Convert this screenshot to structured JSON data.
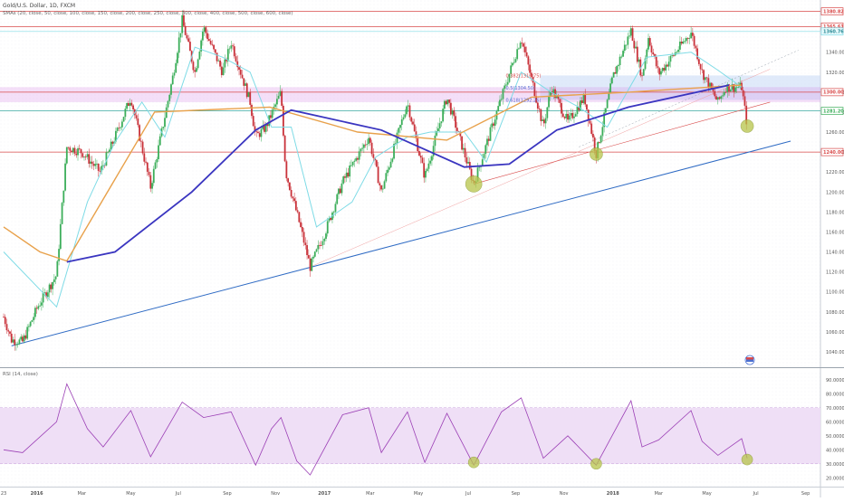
{
  "header": {
    "symbol": "Gold/U.S. Dollar, 1D, FXCM",
    "indicator": "SMAs (20, close, 50, close, 100, close, 150, close, 200, close, 250, close, 300, close, 400, close, 500, close, 600, close)",
    "rsi_label": "RSI (14, close)"
  },
  "colors": {
    "up": "#3cae5a",
    "down": "#c9323a",
    "sma20": "#7fdbe6",
    "sma100": "#e8a14b",
    "sma200": "#3a35c0",
    "hline": "#d94a4a",
    "trend": "#2f6bc4",
    "rsi": "#9b3fb5",
    "rsi_band": "#eddcf5",
    "marker": "#b8c54a",
    "fib_box": "#c7d8f5",
    "zone": "#d78be6"
  },
  "price_axis": {
    "ticks": [
      "1340.00",
      "1320.00",
      "1300.00",
      "1280.00",
      "1260.00",
      "1240.00",
      "1220.00",
      "1200.00",
      "1180.00",
      "1160.00",
      "1140.00",
      "1120.00",
      "1100.00",
      "1080.00",
      "1060.00",
      "1040.00"
    ],
    "tags": [
      {
        "label": "1380.82",
        "value": 1380.82,
        "color": "#d94a4a"
      },
      {
        "label": "1365.61",
        "value": 1365.61,
        "color": "#d94a4a"
      },
      {
        "label": "1360.76",
        "value": 1360.76,
        "color": "#7fdbe6"
      },
      {
        "label": "1300.00",
        "value": 1300.0,
        "color": "#d94a4a"
      },
      {
        "label": "1281.20",
        "value": 1281.2,
        "color": "#3cae5a"
      },
      {
        "label": "1240.00",
        "value": 1240.0,
        "color": "#d94a4a"
      }
    ]
  },
  "rsi_axis": {
    "ticks": [
      "90.0000",
      "80.0000",
      "70.0000",
      "60.0000",
      "50.0000",
      "40.0000",
      "30.0000",
      "20.0000"
    ]
  },
  "time_axis": {
    "labels": [
      "23",
      "2016",
      "Mar",
      "May",
      "Jul",
      "Sep",
      "Nov",
      "2017",
      "Mar",
      "May",
      "Jul",
      "Sep",
      "Nov",
      "2018",
      "Mar",
      "May",
      "Jul",
      "Sep"
    ]
  },
  "annotations": {
    "fib_382": "0.382(1316.75)",
    "fib_5": "0.5(1304.50)",
    "fib_618": "0.618(1292.26)"
  },
  "chart_data": {
    "type": "candlestick",
    "ylim": [
      1030,
      1385
    ],
    "rsi_ylim": [
      15,
      95
    ],
    "horizontal_levels": [
      1380.82,
      1365.61,
      1300.0,
      1281.2,
      1240.0
    ],
    "close_path": [
      {
        "x": "2015-11-23",
        "y": 1075
      },
      {
        "x": "2015-12-03",
        "y": 1052
      },
      {
        "x": "2015-12-17",
        "y": 1050
      },
      {
        "x": "2016-01-05",
        "y": 1085
      },
      {
        "x": "2016-01-29",
        "y": 1117
      },
      {
        "x": "2016-02-11",
        "y": 1245
      },
      {
        "x": "2016-03-01",
        "y": 1240
      },
      {
        "x": "2016-03-24",
        "y": 1220
      },
      {
        "x": "2016-04-12",
        "y": 1255
      },
      {
        "x": "2016-05-02",
        "y": 1295
      },
      {
        "x": "2016-05-27",
        "y": 1205
      },
      {
        "x": "2016-06-24",
        "y": 1315
      },
      {
        "x": "2016-07-06",
        "y": 1372
      },
      {
        "x": "2016-07-22",
        "y": 1320
      },
      {
        "x": "2016-08-02",
        "y": 1365
      },
      {
        "x": "2016-08-26",
        "y": 1320
      },
      {
        "x": "2016-09-06",
        "y": 1350
      },
      {
        "x": "2016-09-30",
        "y": 1290
      },
      {
        "x": "2016-10-07",
        "y": 1255
      },
      {
        "x": "2016-10-20",
        "y": 1265
      },
      {
        "x": "2016-11-08",
        "y": 1300
      },
      {
        "x": "2016-11-14",
        "y": 1220
      },
      {
        "x": "2016-12-01",
        "y": 1170
      },
      {
        "x": "2016-12-15",
        "y": 1125
      },
      {
        "x": "2017-01-03",
        "y": 1160
      },
      {
        "x": "2017-01-25",
        "y": 1210
      },
      {
        "x": "2017-02-27",
        "y": 1255
      },
      {
        "x": "2017-03-15",
        "y": 1200
      },
      {
        "x": "2017-04-17",
        "y": 1290
      },
      {
        "x": "2017-05-09",
        "y": 1215
      },
      {
        "x": "2017-06-06",
        "y": 1295
      },
      {
        "x": "2017-07-10",
        "y": 1208
      },
      {
        "x": "2017-08-04",
        "y": 1270
      },
      {
        "x": "2017-09-08",
        "y": 1355
      },
      {
        "x": "2017-10-06",
        "y": 1265
      },
      {
        "x": "2017-10-16",
        "y": 1305
      },
      {
        "x": "2017-11-06",
        "y": 1270
      },
      {
        "x": "2017-11-27",
        "y": 1295
      },
      {
        "x": "2017-12-12",
        "y": 1238
      },
      {
        "x": "2018-01-02",
        "y": 1315
      },
      {
        "x": "2018-01-25",
        "y": 1362
      },
      {
        "x": "2018-02-08",
        "y": 1315
      },
      {
        "x": "2018-02-16",
        "y": 1355
      },
      {
        "x": "2018-03-01",
        "y": 1318
      },
      {
        "x": "2018-04-11",
        "y": 1360
      },
      {
        "x": "2018-04-25",
        "y": 1320
      },
      {
        "x": "2018-05-15",
        "y": 1290
      },
      {
        "x": "2018-05-25",
        "y": 1305
      },
      {
        "x": "2018-06-14",
        "y": 1305
      },
      {
        "x": "2018-06-21",
        "y": 1266
      }
    ],
    "series": [
      {
        "name": "SMA 20",
        "points": [
          {
            "x": "2015-11-23",
            "y": 1140
          },
          {
            "x": "2016-01-29",
            "y": 1085
          },
          {
            "x": "2016-03-08",
            "y": 1190
          },
          {
            "x": "2016-04-12",
            "y": 1250
          },
          {
            "x": "2016-05-16",
            "y": 1290
          },
          {
            "x": "2016-06-14",
            "y": 1255
          },
          {
            "x": "2016-07-22",
            "y": 1345
          },
          {
            "x": "2016-08-26",
            "y": 1335
          },
          {
            "x": "2016-09-30",
            "y": 1320
          },
          {
            "x": "2016-10-27",
            "y": 1265
          },
          {
            "x": "2016-11-21",
            "y": 1265
          },
          {
            "x": "2016-12-23",
            "y": 1165
          },
          {
            "x": "2017-02-06",
            "y": 1190
          },
          {
            "x": "2017-03-08",
            "y": 1235
          },
          {
            "x": "2017-04-17",
            "y": 1255
          },
          {
            "x": "2017-05-16",
            "y": 1260
          },
          {
            "x": "2017-06-28",
            "y": 1260
          },
          {
            "x": "2017-07-26",
            "y": 1230
          },
          {
            "x": "2017-09-08",
            "y": 1320
          },
          {
            "x": "2017-10-16",
            "y": 1300
          },
          {
            "x": "2017-11-20",
            "y": 1285
          },
          {
            "x": "2017-12-26",
            "y": 1265
          },
          {
            "x": "2018-02-14",
            "y": 1335
          },
          {
            "x": "2018-04-11",
            "y": 1340
          },
          {
            "x": "2018-05-15",
            "y": 1322
          },
          {
            "x": "2018-06-14",
            "y": 1305
          }
        ]
      },
      {
        "name": "SMA 100",
        "points": [
          {
            "x": "2015-11-23",
            "y": 1165
          },
          {
            "x": "2016-01-08",
            "y": 1140
          },
          {
            "x": "2016-02-11",
            "y": 1131
          },
          {
            "x": "2016-06-01",
            "y": 1280
          },
          {
            "x": "2016-10-25",
            "y": 1285
          },
          {
            "x": "2017-02-13",
            "y": 1260
          },
          {
            "x": "2017-06-06",
            "y": 1252
          },
          {
            "x": "2017-09-21",
            "y": 1295
          },
          {
            "x": "2018-01-22",
            "y": 1300
          },
          {
            "x": "2018-06-14",
            "y": 1307
          }
        ]
      },
      {
        "name": "SMA 200",
        "points": [
          {
            "x": "2016-02-11",
            "y": 1130
          },
          {
            "x": "2016-04-12",
            "y": 1140
          },
          {
            "x": "2016-07-18",
            "y": 1200
          },
          {
            "x": "2016-10-07",
            "y": 1262
          },
          {
            "x": "2016-11-21",
            "y": 1282
          },
          {
            "x": "2017-03-15",
            "y": 1262
          },
          {
            "x": "2017-06-28",
            "y": 1225
          },
          {
            "x": "2017-08-24",
            "y": 1228
          },
          {
            "x": "2017-10-23",
            "y": 1262
          },
          {
            "x": "2018-01-22",
            "y": 1285
          },
          {
            "x": "2018-05-29",
            "y": 1307
          }
        ]
      },
      {
        "name": "RSI 14",
        "points": [
          {
            "x": "2015-11-23",
            "y": 40
          },
          {
            "x": "2015-12-17",
            "y": 38
          },
          {
            "x": "2016-01-29",
            "y": 60
          },
          {
            "x": "2016-02-11",
            "y": 87
          },
          {
            "x": "2016-03-08",
            "y": 55
          },
          {
            "x": "2016-03-28",
            "y": 42
          },
          {
            "x": "2016-05-02",
            "y": 68
          },
          {
            "x": "2016-05-27",
            "y": 35
          },
          {
            "x": "2016-07-06",
            "y": 74
          },
          {
            "x": "2016-08-02",
            "y": 63
          },
          {
            "x": "2016-09-06",
            "y": 67
          },
          {
            "x": "2016-10-07",
            "y": 29
          },
          {
            "x": "2016-10-27",
            "y": 55
          },
          {
            "x": "2016-11-08",
            "y": 63
          },
          {
            "x": "2016-11-28",
            "y": 32
          },
          {
            "x": "2016-12-15",
            "y": 22
          },
          {
            "x": "2017-01-25",
            "y": 65
          },
          {
            "x": "2017-02-27",
            "y": 70
          },
          {
            "x": "2017-03-15",
            "y": 38
          },
          {
            "x": "2017-04-17",
            "y": 67
          },
          {
            "x": "2017-05-09",
            "y": 31
          },
          {
            "x": "2017-06-06",
            "y": 66
          },
          {
            "x": "2017-07-10",
            "y": 29
          },
          {
            "x": "2017-08-14",
            "y": 67
          },
          {
            "x": "2017-09-08",
            "y": 77
          },
          {
            "x": "2017-10-06",
            "y": 34
          },
          {
            "x": "2017-11-06",
            "y": 50
          },
          {
            "x": "2017-12-12",
            "y": 29
          },
          {
            "x": "2018-01-25",
            "y": 75
          },
          {
            "x": "2018-02-08",
            "y": 42
          },
          {
            "x": "2018-03-01",
            "y": 47
          },
          {
            "x": "2018-04-11",
            "y": 68
          },
          {
            "x": "2018-04-25",
            "y": 46
          },
          {
            "x": "2018-05-15",
            "y": 36
          },
          {
            "x": "2018-06-14",
            "y": 48
          },
          {
            "x": "2018-06-21",
            "y": 34
          }
        ]
      }
    ]
  }
}
